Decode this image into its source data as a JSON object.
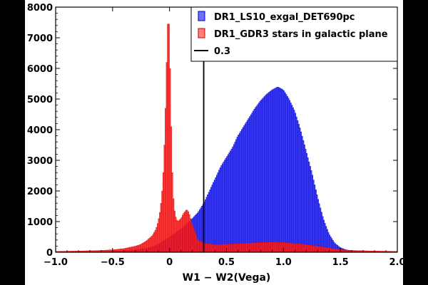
{
  "chart_data": {
    "type": "bar",
    "title": "",
    "xlabel": "W1 − W2(Vega)",
    "ylabel": "",
    "xlim": [
      -1.0,
      2.0
    ],
    "ylim": [
      0,
      8000
    ],
    "x_ticks": [
      "−1.0",
      "−0.5",
      "0",
      "0.5",
      "1.0",
      "1.5",
      "2.0"
    ],
    "y_ticks": [
      "0",
      "1000",
      "2000",
      "3000",
      "4000",
      "5000",
      "6000",
      "7000",
      "8000"
    ],
    "grid": false,
    "legend_position": "top-right",
    "colors": {
      "exgal_fill": "#2222ff",
      "exgal_stroke": "#0000aa",
      "stars_fill": "#ff2020",
      "stars_stroke": "#cc0000",
      "cut_line": "#000000"
    },
    "cut_line": {
      "x": 0.3,
      "label": "0.3"
    },
    "series": [
      {
        "name": "DR1_LS10_exgal_DET690pc",
        "x": [
          -1.0,
          -0.9,
          -0.8,
          -0.7,
          -0.6,
          -0.5,
          -0.4,
          -0.3,
          -0.2,
          -0.15,
          -0.1,
          -0.05,
          0.0,
          0.05,
          0.1,
          0.15,
          0.2,
          0.25,
          0.3,
          0.35,
          0.4,
          0.45,
          0.5,
          0.55,
          0.6,
          0.65,
          0.7,
          0.75,
          0.8,
          0.85,
          0.9,
          0.95,
          1.0,
          1.05,
          1.1,
          1.15,
          1.2,
          1.25,
          1.3,
          1.35,
          1.4,
          1.45,
          1.5,
          1.55,
          1.6,
          1.7,
          1.8,
          1.9,
          2.0
        ],
        "y": [
          5,
          5,
          10,
          15,
          20,
          30,
          50,
          80,
          130,
          180,
          260,
          380,
          500,
          620,
          760,
          920,
          1100,
          1300,
          1600,
          2000,
          2400,
          2800,
          3100,
          3400,
          3800,
          4100,
          4400,
          4700,
          4950,
          5150,
          5300,
          5400,
          5300,
          5000,
          4600,
          4000,
          3300,
          2600,
          1800,
          1100,
          600,
          300,
          150,
          80,
          50,
          25,
          10,
          5,
          0
        ]
      },
      {
        "name": "DR1_GDR3 stars in galactic plane",
        "x": [
          -1.0,
          -0.9,
          -0.8,
          -0.7,
          -0.6,
          -0.5,
          -0.4,
          -0.3,
          -0.25,
          -0.2,
          -0.15,
          -0.12,
          -0.1,
          -0.08,
          -0.06,
          -0.05,
          -0.04,
          -0.03,
          -0.02,
          -0.01,
          0.0,
          0.01,
          0.02,
          0.03,
          0.04,
          0.05,
          0.07,
          0.1,
          0.12,
          0.15,
          0.17,
          0.2,
          0.25,
          0.3,
          0.4,
          0.5,
          0.6,
          0.7,
          0.8,
          0.9,
          1.0,
          1.1,
          1.2,
          1.3,
          1.4,
          1.5,
          1.6,
          1.8,
          2.0
        ],
        "y": [
          30,
          35,
          40,
          50,
          60,
          80,
          120,
          200,
          260,
          380,
          550,
          750,
          1000,
          1400,
          2200,
          3000,
          4000,
          5400,
          7000,
          7900,
          7000,
          5000,
          3200,
          2000,
          1500,
          1200,
          1000,
          1100,
          1250,
          1400,
          1300,
          900,
          400,
          300,
          250,
          260,
          280,
          300,
          320,
          330,
          320,
          290,
          250,
          200,
          140,
          90,
          60,
          40,
          30
        ]
      }
    ]
  }
}
